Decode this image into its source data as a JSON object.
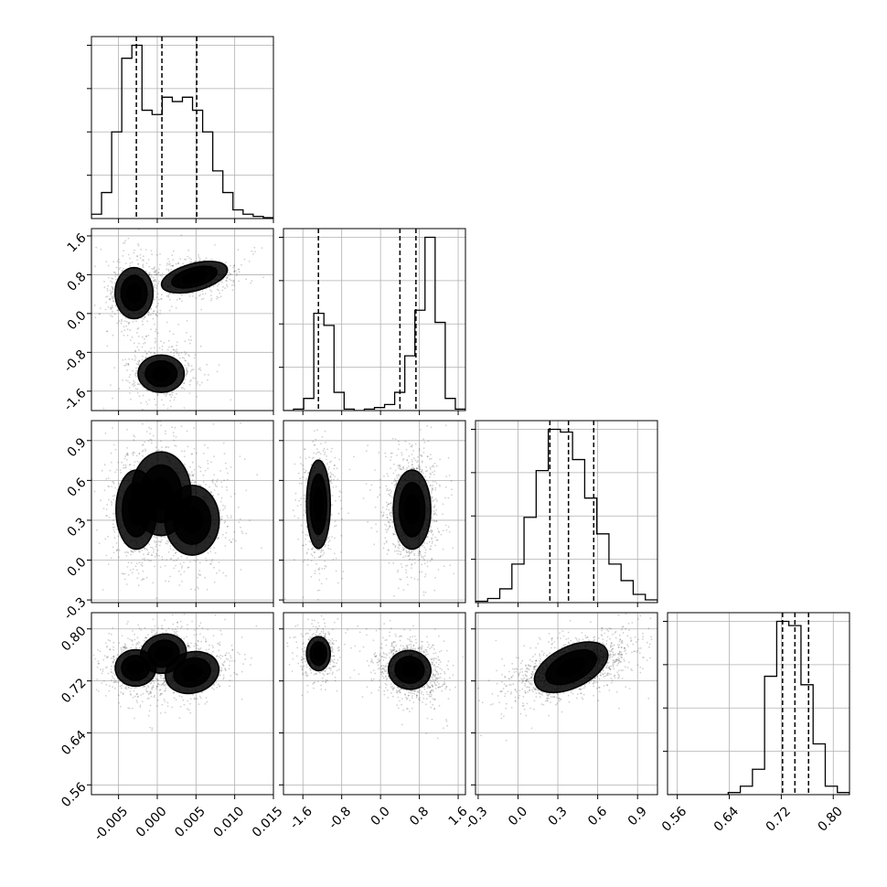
{
  "chart_data": {
    "type": "corner",
    "grid": true,
    "quantiles": [
      0.16,
      0.5,
      0.84
    ],
    "params": [
      {
        "range": [
          -0.0085,
          0.015
        ],
        "ticks": [
          "-0.005",
          "0.000",
          "0.005",
          "0.010",
          "0.015"
        ],
        "tick_values": [
          -0.005,
          0.0,
          0.005,
          0.01,
          0.015
        ],
        "hist_counts": [
          1,
          6,
          20,
          37,
          40,
          25,
          24,
          28,
          27,
          28,
          25,
          20,
          11,
          6,
          2,
          1,
          0.5,
          0.2
        ],
        "quantile_values": [
          -0.0027,
          0.0006,
          0.0051
        ]
      },
      {
        "range": [
          -2.0,
          1.75
        ],
        "ticks": [
          "-1.6",
          "-0.8",
          "0.0",
          "0.8",
          "1.6"
        ],
        "tick_values": [
          -1.6,
          -0.8,
          0.0,
          0.8,
          1.6
        ],
        "hist_counts": [
          0,
          0.5,
          4,
          32,
          28,
          6,
          0.5,
          0,
          0.5,
          1,
          2,
          6,
          18,
          33,
          57,
          29,
          4,
          0.5
        ],
        "quantile_values": [
          -1.28,
          0.4,
          0.73
        ]
      },
      {
        "range": [
          -0.32,
          1.05
        ],
        "ticks": [
          "-0.3",
          "0.0",
          "0.3",
          "0.6",
          "0.9"
        ],
        "tick_values": [
          -0.3,
          0.0,
          0.3,
          0.6,
          0.9
        ],
        "hist_counts": [
          0.5,
          1.5,
          5,
          14,
          31,
          48,
          63,
          62,
          52,
          38,
          25,
          14,
          8,
          3,
          1
        ],
        "quantile_values": [
          0.24,
          0.38,
          0.57
        ]
      },
      {
        "range": [
          0.545,
          0.825
        ],
        "ticks": [
          "0.56",
          "0.64",
          "0.72",
          "0.80"
        ],
        "tick_values": [
          0.56,
          0.64,
          0.72,
          0.8
        ],
        "hist_counts": [
          0,
          0,
          0,
          0,
          0,
          0.5,
          2,
          6,
          28,
          41,
          40,
          26,
          12,
          2,
          0.5
        ],
        "quantile_values": [
          0.722,
          0.741,
          0.762
        ]
      }
    ],
    "left_ticks": {
      "row1": [
        "1.6",
        "0.8",
        "0.0",
        "-0.8",
        "-1.6"
      ],
      "row2": [
        "0.9",
        "0.6",
        "0.3",
        "0.0",
        "-0.3"
      ],
      "row3": [
        "0.80",
        "0.72",
        "0.64",
        "0.56"
      ]
    },
    "bottom_ticks": {
      "col0": [
        "-0.005",
        "0.000",
        "0.005",
        "0.010",
        "0.015"
      ],
      "col1": [
        "-1.6",
        "-0.8",
        "0.0",
        "0.8",
        "1.6"
      ],
      "col2": [
        "-0.3",
        "0.0",
        "0.3",
        "0.6",
        "0.9"
      ],
      "col3": [
        "0.56",
        "0.64",
        "0.72",
        "0.80"
      ]
    },
    "clusters": {
      "p1_vs_p0": [
        {
          "mx": -0.003,
          "my": 0.42,
          "sx": 0.0014,
          "sy": 0.3,
          "rho": 0.0,
          "w": 0.34
        },
        {
          "mx": 0.0048,
          "my": 0.75,
          "sx": 0.0025,
          "sy": 0.16,
          "rho": 0.3,
          "w": 0.33
        },
        {
          "mx": 0.0005,
          "my": -1.24,
          "sx": 0.0017,
          "sy": 0.22,
          "rho": 0.0,
          "w": 0.33
        }
      ],
      "p2_vs_p0": [
        {
          "mx": -0.0027,
          "my": 0.38,
          "sx": 0.0015,
          "sy": 0.17,
          "rho": 0.0,
          "w": 0.34
        },
        {
          "mx": 0.0045,
          "my": 0.3,
          "sx": 0.002,
          "sy": 0.15,
          "rho": 0.0,
          "w": 0.33
        },
        {
          "mx": 0.0005,
          "my": 0.5,
          "sx": 0.0022,
          "sy": 0.18,
          "rho": 0.0,
          "w": 0.33
        }
      ],
      "p3_vs_p0": [
        {
          "mx": -0.0028,
          "my": 0.74,
          "sx": 0.0015,
          "sy": 0.016,
          "rho": 0.0,
          "w": 0.34
        },
        {
          "mx": 0.0008,
          "my": 0.762,
          "sx": 0.0017,
          "sy": 0.017,
          "rho": 0.3,
          "w": 0.33
        },
        {
          "mx": 0.0045,
          "my": 0.733,
          "sx": 0.002,
          "sy": 0.018,
          "rho": 0.3,
          "w": 0.33
        }
      ],
      "p2_vs_p1": [
        {
          "mx": -1.28,
          "my": 0.42,
          "sx": 0.14,
          "sy": 0.19,
          "rho": 0.0,
          "w": 0.34
        },
        {
          "mx": 0.65,
          "my": 0.38,
          "sx": 0.22,
          "sy": 0.17,
          "rho": 0.0,
          "w": 0.66
        }
      ],
      "p3_vs_p1": [
        {
          "mx": -1.28,
          "my": 0.762,
          "sx": 0.14,
          "sy": 0.015,
          "rho": 0.0,
          "w": 0.34
        },
        {
          "mx": 0.6,
          "my": 0.737,
          "sx": 0.25,
          "sy": 0.017,
          "rho": -0.2,
          "w": 0.66
        }
      ],
      "p3_vs_p2": [
        {
          "mx": 0.4,
          "my": 0.741,
          "sx": 0.17,
          "sy": 0.018,
          "rho": 0.55,
          "w": 1.0
        }
      ]
    }
  }
}
